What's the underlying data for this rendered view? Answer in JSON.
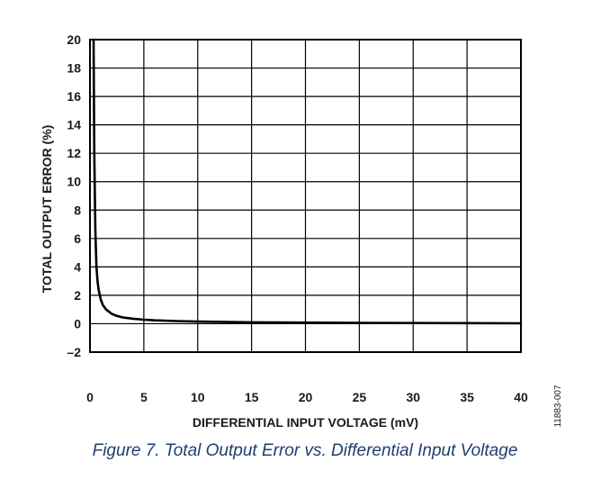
{
  "caption": "Figure 7. Total Output Error vs. Differential Input Voltage",
  "figure_code": "11883-007",
  "chart_data": {
    "type": "line",
    "xlabel": "DIFFERENTIAL INPUT VOLTAGE (mV)",
    "ylabel": "TOTAL OUTPUT ERROR (%)",
    "xlim": [
      0,
      40
    ],
    "ylim": [
      -2,
      20
    ],
    "xticks": [
      0,
      5,
      10,
      15,
      20,
      25,
      30,
      35,
      40
    ],
    "yticks": [
      -2,
      0,
      2,
      4,
      6,
      8,
      10,
      12,
      14,
      16,
      18,
      20
    ],
    "xtick_labels": [
      "0",
      "5",
      "10",
      "15",
      "20",
      "25",
      "30",
      "35",
      "40"
    ],
    "ytick_labels": [
      "–2",
      "0",
      "2",
      "4",
      "6",
      "8",
      "10",
      "12",
      "14",
      "16",
      "18",
      "20"
    ],
    "grid": true,
    "line_color": "#000000",
    "series": [
      {
        "x": [
          0.33,
          0.4,
          0.5,
          0.6,
          0.7,
          0.8,
          1.0,
          1.2,
          1.5,
          2,
          2.5,
          3,
          4,
          5,
          6,
          8,
          10,
          15,
          20,
          25,
          30,
          35,
          40
        ],
        "y": [
          20,
          12,
          6.5,
          4.0,
          3.0,
          2.4,
          1.7,
          1.3,
          1.0,
          0.7,
          0.55,
          0.45,
          0.35,
          0.28,
          0.24,
          0.19,
          0.15,
          0.1,
          0.08,
          0.06,
          0.05,
          0.04,
          0.03
        ]
      }
    ]
  }
}
